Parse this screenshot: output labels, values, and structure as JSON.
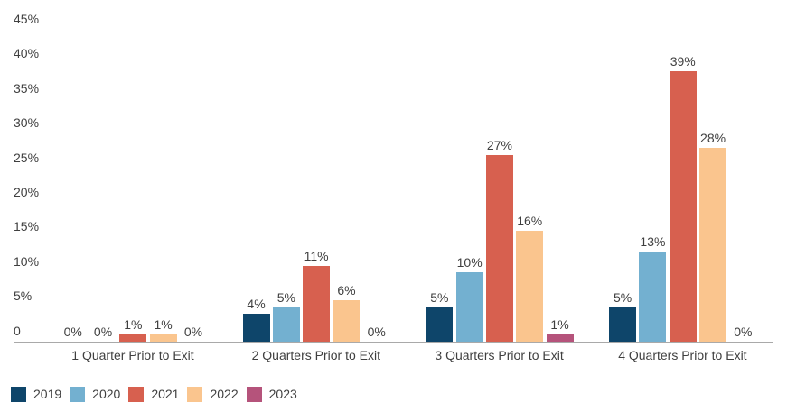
{
  "chart_data": {
    "type": "bar",
    "title": "",
    "categories": [
      "1 Quarter Prior to Exit",
      "2 Quarters Prior to Exit",
      "3 Quarters Prior to Exit",
      "4 Quarters Prior to Exit"
    ],
    "series": [
      {
        "name": "2019",
        "color": "#0e456a",
        "values": [
          0,
          4,
          5,
          5
        ]
      },
      {
        "name": "2020",
        "color": "#73b0d0",
        "values": [
          0,
          5,
          10,
          13
        ]
      },
      {
        "name": "2021",
        "color": "#d7604f",
        "values": [
          1,
          11,
          27,
          39
        ]
      },
      {
        "name": "2022",
        "color": "#fac58e",
        "values": [
          1,
          6,
          16,
          28
        ]
      },
      {
        "name": "2023",
        "color": "#b5537b",
        "values": [
          0,
          0,
          1,
          0
        ]
      }
    ],
    "value_label_suffix": "%",
    "y_axis": {
      "ticks": [
        "45%",
        "40%",
        "35%",
        "30%",
        "25%",
        "20%",
        "15%",
        "10%",
        "5%",
        "0"
      ],
      "tick_values": [
        45,
        40,
        35,
        30,
        25,
        20,
        15,
        10,
        5,
        0
      ],
      "min": 0,
      "max": 45
    },
    "grid": false,
    "legend_position": "bottom",
    "colors": {
      "text": "#3f3f3f",
      "axis_line": "#a9a9a9",
      "background": "#ffffff"
    }
  }
}
